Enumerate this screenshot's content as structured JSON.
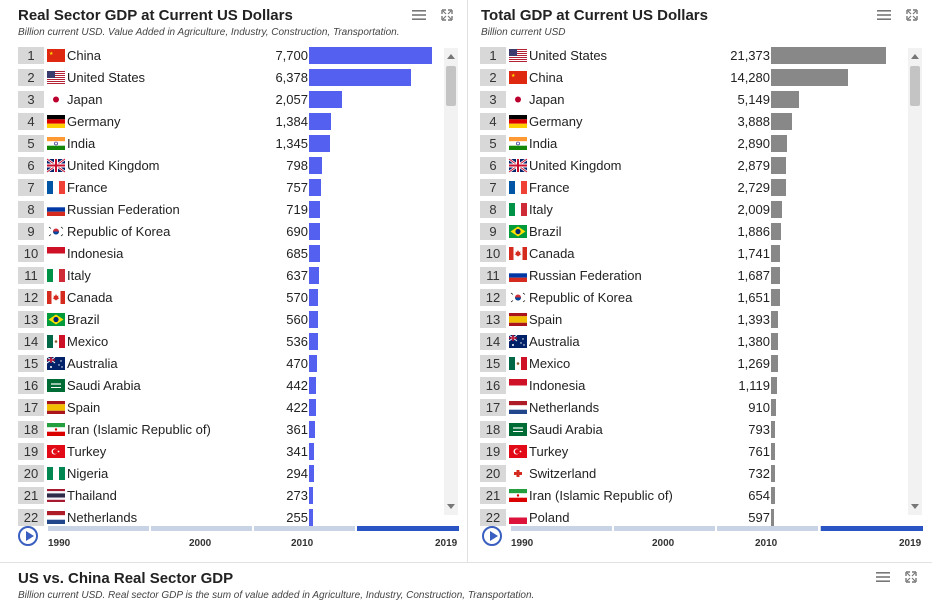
{
  "left": {
    "title": "Real Sector GDP at Current US Dollars",
    "subtitle": "Billion current USD. Value Added in Agriculture, Industry, Construction, Transportation.",
    "bar_color": "#5460f0",
    "rows": [
      {
        "rank": "1",
        "country": "China",
        "value": "7,700",
        "num": 7700,
        "flag": "cn"
      },
      {
        "rank": "2",
        "country": "United States",
        "value": "6,378",
        "num": 6378,
        "flag": "us"
      },
      {
        "rank": "3",
        "country": "Japan",
        "value": "2,057",
        "num": 2057,
        "flag": "jp"
      },
      {
        "rank": "4",
        "country": "Germany",
        "value": "1,384",
        "num": 1384,
        "flag": "de"
      },
      {
        "rank": "5",
        "country": "India",
        "value": "1,345",
        "num": 1345,
        "flag": "in"
      },
      {
        "rank": "6",
        "country": "United Kingdom",
        "value": "798",
        "num": 798,
        "flag": "gb"
      },
      {
        "rank": "7",
        "country": "France",
        "value": "757",
        "num": 757,
        "flag": "fr"
      },
      {
        "rank": "8",
        "country": "Russian Federation",
        "value": "719",
        "num": 719,
        "flag": "ru"
      },
      {
        "rank": "9",
        "country": "Republic of Korea",
        "value": "690",
        "num": 690,
        "flag": "kr"
      },
      {
        "rank": "10",
        "country": "Indonesia",
        "value": "685",
        "num": 685,
        "flag": "id"
      },
      {
        "rank": "11",
        "country": "Italy",
        "value": "637",
        "num": 637,
        "flag": "it"
      },
      {
        "rank": "12",
        "country": "Canada",
        "value": "570",
        "num": 570,
        "flag": "ca"
      },
      {
        "rank": "13",
        "country": "Brazil",
        "value": "560",
        "num": 560,
        "flag": "br"
      },
      {
        "rank": "14",
        "country": "Mexico",
        "value": "536",
        "num": 536,
        "flag": "mx"
      },
      {
        "rank": "15",
        "country": "Australia",
        "value": "470",
        "num": 470,
        "flag": "au"
      },
      {
        "rank": "16",
        "country": "Saudi Arabia",
        "value": "442",
        "num": 442,
        "flag": "sa"
      },
      {
        "rank": "17",
        "country": "Spain",
        "value": "422",
        "num": 422,
        "flag": "es"
      },
      {
        "rank": "18",
        "country": "Iran (Islamic Republic of)",
        "value": "361",
        "num": 361,
        "flag": "ir"
      },
      {
        "rank": "19",
        "country": "Turkey",
        "value": "341",
        "num": 341,
        "flag": "tr"
      },
      {
        "rank": "20",
        "country": "Nigeria",
        "value": "294",
        "num": 294,
        "flag": "ng"
      },
      {
        "rank": "21",
        "country": "Thailand",
        "value": "273",
        "num": 273,
        "flag": "th"
      },
      {
        "rank": "22",
        "country": "Netherlands",
        "value": "255",
        "num": 255,
        "flag": "nl"
      }
    ],
    "timeline": {
      "ticks": [
        "1990",
        "2000",
        "2010",
        "2019"
      ]
    }
  },
  "right": {
    "title": "Total GDP at Current US Dollars",
    "subtitle": "Billion current USD",
    "bar_color": "#888888",
    "rows": [
      {
        "rank": "1",
        "country": "United States",
        "value": "21,373",
        "num": 21373,
        "flag": "us"
      },
      {
        "rank": "2",
        "country": "China",
        "value": "14,280",
        "num": 14280,
        "flag": "cn"
      },
      {
        "rank": "3",
        "country": "Japan",
        "value": "5,149",
        "num": 5149,
        "flag": "jp"
      },
      {
        "rank": "4",
        "country": "Germany",
        "value": "3,888",
        "num": 3888,
        "flag": "de"
      },
      {
        "rank": "5",
        "country": "India",
        "value": "2,890",
        "num": 2890,
        "flag": "in"
      },
      {
        "rank": "6",
        "country": "United Kingdom",
        "value": "2,879",
        "num": 2879,
        "flag": "gb"
      },
      {
        "rank": "7",
        "country": "France",
        "value": "2,729",
        "num": 2729,
        "flag": "fr"
      },
      {
        "rank": "8",
        "country": "Italy",
        "value": "2,009",
        "num": 2009,
        "flag": "it"
      },
      {
        "rank": "9",
        "country": "Brazil",
        "value": "1,886",
        "num": 1886,
        "flag": "br"
      },
      {
        "rank": "10",
        "country": "Canada",
        "value": "1,741",
        "num": 1741,
        "flag": "ca"
      },
      {
        "rank": "11",
        "country": "Russian Federation",
        "value": "1,687",
        "num": 1687,
        "flag": "ru"
      },
      {
        "rank": "12",
        "country": "Republic of Korea",
        "value": "1,651",
        "num": 1651,
        "flag": "kr"
      },
      {
        "rank": "13",
        "country": "Spain",
        "value": "1,393",
        "num": 1393,
        "flag": "es"
      },
      {
        "rank": "14",
        "country": "Australia",
        "value": "1,380",
        "num": 1380,
        "flag": "au"
      },
      {
        "rank": "15",
        "country": "Mexico",
        "value": "1,269",
        "num": 1269,
        "flag": "mx"
      },
      {
        "rank": "16",
        "country": "Indonesia",
        "value": "1,119",
        "num": 1119,
        "flag": "id"
      },
      {
        "rank": "17",
        "country": "Netherlands",
        "value": "910",
        "num": 910,
        "flag": "nl"
      },
      {
        "rank": "18",
        "country": "Saudi Arabia",
        "value": "793",
        "num": 793,
        "flag": "sa"
      },
      {
        "rank": "19",
        "country": "Turkey",
        "value": "761",
        "num": 761,
        "flag": "tr"
      },
      {
        "rank": "20",
        "country": "Switzerland",
        "value": "732",
        "num": 732,
        "flag": "ch"
      },
      {
        "rank": "21",
        "country": "Iran (Islamic Republic of)",
        "value": "654",
        "num": 654,
        "flag": "ir"
      },
      {
        "rank": "22",
        "country": "Poland",
        "value": "597",
        "num": 597,
        "flag": "pl"
      }
    ],
    "timeline": {
      "ticks": [
        "1990",
        "2000",
        "2010",
        "2019"
      ]
    }
  },
  "bottom": {
    "title": "US vs. China Real Sector GDP",
    "subtitle": "Billion current USD. Real sector GDP is the sum of value added in Agriculture, Industry, Construction, Transportation."
  },
  "icons": {
    "menu": "hamburger-menu-icon",
    "expand": "expand-icon",
    "play": "play-icon"
  }
}
